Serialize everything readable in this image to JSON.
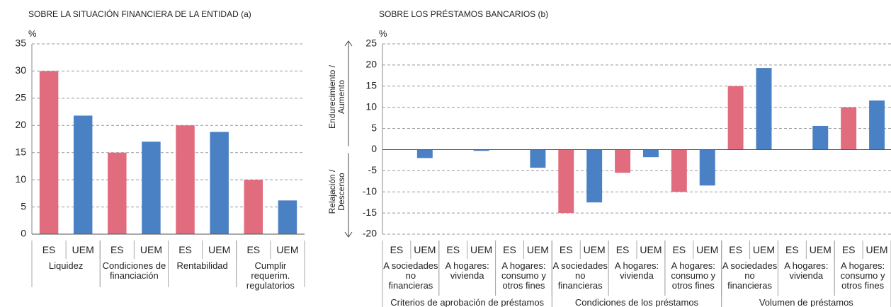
{
  "chart_data": [
    {
      "type": "bar",
      "title": "SOBRE LA SITUACIÓN FINANCIERA DE LA ENTIDAD (a)",
      "unit": "%",
      "ylim": [
        0,
        35
      ],
      "yticks": [
        0,
        5,
        10,
        15,
        20,
        25,
        30,
        35
      ],
      "grid": true,
      "colors": [
        "#e06c7e",
        "#4a80c4"
      ],
      "groups": [
        {
          "label": "Liquidez",
          "categories": [
            "ES",
            "UEM"
          ],
          "values": [
            30,
            21.8
          ]
        },
        {
          "label": "Condiciones de financiación",
          "categories": [
            "ES",
            "UEM"
          ],
          "values": [
            15,
            17
          ]
        },
        {
          "label": "Rentabilidad",
          "categories": [
            "ES",
            "UEM"
          ],
          "values": [
            20,
            18.8
          ]
        },
        {
          "label": "Cumplir requerim. regulatorios",
          "categories": [
            "ES",
            "UEM"
          ],
          "values": [
            10,
            6.2
          ]
        }
      ]
    },
    {
      "type": "bar",
      "title": "SOBRE LOS PRÉSTAMOS BANCARIOS (b)",
      "unit": "%",
      "axis_labels": {
        "up": "Endurecimiento / Aumento",
        "down": "Relajación / Descenso"
      },
      "ylim": [
        -20,
        25
      ],
      "yticks": [
        -20,
        -15,
        -10,
        -5,
        0,
        5,
        10,
        15,
        20,
        25
      ],
      "grid": true,
      "colors": [
        "#e06c7e",
        "#4a80c4"
      ],
      "groups": [
        {
          "label": "Criterios de aprobación de préstamos",
          "subgroups": [
            {
              "label": "A sociedades no financieras",
              "categories": [
                "ES",
                "UEM"
              ],
              "values": [
                0,
                -2
              ]
            },
            {
              "label": "A hogares: vivienda",
              "categories": [
                "ES",
                "UEM"
              ],
              "values": [
                0,
                -0.3
              ]
            },
            {
              "label": "A hogares: consumo y otros fines",
              "categories": [
                "ES",
                "UEM"
              ],
              "values": [
                0,
                -4.3
              ]
            }
          ]
        },
        {
          "label": "Condiciones de los préstamos",
          "subgroups": [
            {
              "label": "A sociedades no financieras",
              "categories": [
                "ES",
                "UEM"
              ],
              "values": [
                -15,
                -12.5
              ]
            },
            {
              "label": "A hogares: vivienda",
              "categories": [
                "ES",
                "UEM"
              ],
              "values": [
                -5.5,
                -1.8
              ]
            },
            {
              "label": "A hogares: consumo y otros fines",
              "categories": [
                "ES",
                "UEM"
              ],
              "values": [
                -10,
                -8.5
              ]
            }
          ]
        },
        {
          "label": "Volumen de préstamos",
          "subgroups": [
            {
              "label": "A sociedades no financieras",
              "categories": [
                "ES",
                "UEM"
              ],
              "values": [
                15,
                19.3
              ]
            },
            {
              "label": "A hogares: vivienda",
              "categories": [
                "ES",
                "UEM"
              ],
              "values": [
                0,
                5.6
              ]
            },
            {
              "label": "A hogares: consumo y otros fines",
              "categories": [
                "ES",
                "UEM"
              ],
              "values": [
                10,
                11.6
              ]
            }
          ]
        }
      ]
    }
  ]
}
